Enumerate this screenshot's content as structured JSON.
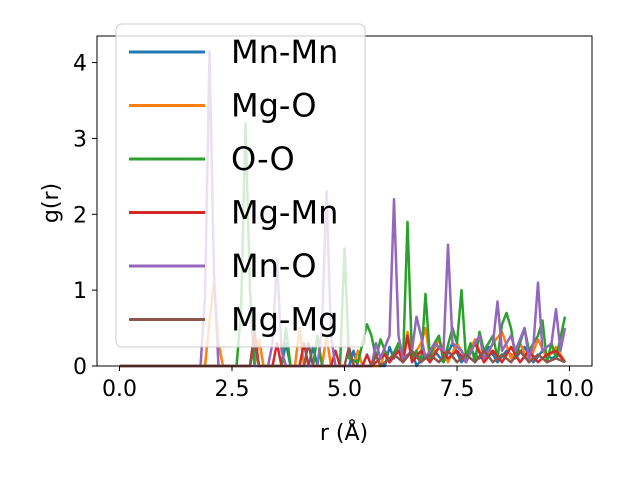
{
  "chart_data": {
    "type": "line",
    "xlabel": "r (Å)",
    "ylabel": "g(r)",
    "xlim": [
      -0.5,
      10.5
    ],
    "ylim": [
      0,
      4.35
    ],
    "xticks": [
      0.0,
      2.5,
      5.0,
      7.5,
      10.0
    ],
    "xtick_labels": [
      "0.0",
      "2.5",
      "5.0",
      "7.5",
      "10.0"
    ],
    "yticks": [
      0,
      1,
      2,
      3,
      4
    ],
    "ytick_labels": [
      "0",
      "1",
      "2",
      "3",
      "4"
    ],
    "grid": false,
    "legend_position": "upper-left",
    "series": [
      {
        "name": "Mn-Mn",
        "color": "#1f77b4",
        "points": [
          [
            0,
            0
          ],
          [
            2.9,
            0
          ],
          [
            3.0,
            0.4
          ],
          [
            3.1,
            0
          ],
          [
            3.6,
            0
          ],
          [
            3.7,
            0.3
          ],
          [
            3.8,
            0
          ],
          [
            4.2,
            0
          ],
          [
            4.3,
            0.25
          ],
          [
            4.4,
            0
          ],
          [
            5.1,
            0
          ],
          [
            5.2,
            0.2
          ],
          [
            5.3,
            0
          ],
          [
            5.9,
            0
          ],
          [
            6.0,
            0.25
          ],
          [
            6.1,
            0.1
          ],
          [
            6.2,
            0.3
          ],
          [
            6.3,
            0.05
          ],
          [
            6.5,
            0.2
          ],
          [
            6.6,
            0
          ],
          [
            6.8,
            0.15
          ],
          [
            6.9,
            0.05
          ],
          [
            7.0,
            0.2
          ],
          [
            7.2,
            0.05
          ],
          [
            7.4,
            0.3
          ],
          [
            7.6,
            0.05
          ],
          [
            7.8,
            0.2
          ],
          [
            8.0,
            0.1
          ],
          [
            8.2,
            0.25
          ],
          [
            8.4,
            0.05
          ],
          [
            8.6,
            0.2
          ],
          [
            8.8,
            0.1
          ],
          [
            9.0,
            0.25
          ],
          [
            9.2,
            0.05
          ],
          [
            9.4,
            0.2
          ],
          [
            9.6,
            0.1
          ],
          [
            9.8,
            0.15
          ],
          [
            9.9,
            0.05
          ]
        ]
      },
      {
        "name": "Mg-O",
        "color": "#ff7f0e",
        "points": [
          [
            0,
            0
          ],
          [
            1.9,
            0
          ],
          [
            2.0,
            0.6
          ],
          [
            2.1,
            1.1
          ],
          [
            2.2,
            0.3
          ],
          [
            2.3,
            0
          ],
          [
            3.0,
            0
          ],
          [
            3.1,
            0.35
          ],
          [
            3.2,
            0
          ],
          [
            3.9,
            0
          ],
          [
            4.0,
            0.5
          ],
          [
            4.1,
            0
          ],
          [
            4.5,
            0
          ],
          [
            4.6,
            0.4
          ],
          [
            4.7,
            0
          ],
          [
            5.2,
            0
          ],
          [
            5.3,
            0.2
          ],
          [
            5.4,
            0
          ],
          [
            5.8,
            0
          ],
          [
            5.9,
            0.2
          ],
          [
            6.0,
            0.05
          ],
          [
            6.2,
            0.3
          ],
          [
            6.3,
            0.1
          ],
          [
            6.4,
            0.45
          ],
          [
            6.5,
            0.1
          ],
          [
            6.7,
            0.3
          ],
          [
            6.8,
            0.5
          ],
          [
            6.9,
            0.1
          ],
          [
            7.1,
            0.35
          ],
          [
            7.3,
            0.05
          ],
          [
            7.5,
            0.3
          ],
          [
            7.7,
            0.1
          ],
          [
            7.9,
            0.35
          ],
          [
            8.1,
            0.05
          ],
          [
            8.3,
            0.3
          ],
          [
            8.5,
            0.45
          ],
          [
            8.7,
            0.1
          ],
          [
            8.9,
            0.3
          ],
          [
            9.1,
            0.05
          ],
          [
            9.3,
            0.35
          ],
          [
            9.5,
            0.1
          ],
          [
            9.7,
            0.25
          ],
          [
            9.9,
            0.05
          ]
        ]
      },
      {
        "name": "O-O",
        "color": "#2ca02c",
        "points": [
          [
            0,
            0
          ],
          [
            2.6,
            0
          ],
          [
            2.7,
            0.7
          ],
          [
            2.8,
            3.2
          ],
          [
            2.9,
            1.0
          ],
          [
            3.0,
            0
          ],
          [
            3.6,
            0
          ],
          [
            3.7,
            0.5
          ],
          [
            3.8,
            0
          ],
          [
            4.3,
            0
          ],
          [
            4.4,
            0.4
          ],
          [
            4.5,
            0
          ],
          [
            4.9,
            0
          ],
          [
            5.0,
            1.55
          ],
          [
            5.1,
            0.1
          ],
          [
            5.3,
            0.05
          ],
          [
            5.5,
            0.55
          ],
          [
            5.6,
            0.4
          ],
          [
            5.7,
            0.1
          ],
          [
            5.8,
            0.35
          ],
          [
            5.9,
            0.2
          ],
          [
            6.0,
            0.05
          ],
          [
            6.2,
            0.3
          ],
          [
            6.3,
            0.05
          ],
          [
            6.4,
            1.9
          ],
          [
            6.5,
            0.1
          ],
          [
            6.6,
            0.2
          ],
          [
            6.7,
            0.05
          ],
          [
            6.8,
            0.95
          ],
          [
            6.9,
            0.1
          ],
          [
            7.0,
            0.3
          ],
          [
            7.1,
            0.4
          ],
          [
            7.2,
            0.05
          ],
          [
            7.4,
            0.5
          ],
          [
            7.5,
            0.3
          ],
          [
            7.6,
            1.0
          ],
          [
            7.7,
            0.1
          ],
          [
            7.8,
            0.3
          ],
          [
            7.9,
            0.05
          ],
          [
            8.0,
            0.45
          ],
          [
            8.1,
            0.2
          ],
          [
            8.3,
            0.4
          ],
          [
            8.4,
            0.1
          ],
          [
            8.5,
            0.55
          ],
          [
            8.6,
            0.7
          ],
          [
            8.7,
            0.5
          ],
          [
            8.8,
            0.1
          ],
          [
            9.0,
            0.5
          ],
          [
            9.1,
            0.2
          ],
          [
            9.3,
            0.4
          ],
          [
            9.4,
            0.6
          ],
          [
            9.5,
            0.05
          ],
          [
            9.6,
            0.3
          ],
          [
            9.7,
            0.1
          ],
          [
            9.9,
            0.65
          ]
        ]
      },
      {
        "name": "Mg-Mn",
        "color": "#d62728",
        "points": [
          [
            0,
            0
          ],
          [
            2.9,
            0
          ],
          [
            3.0,
            0.45
          ],
          [
            3.1,
            0
          ],
          [
            3.4,
            0
          ],
          [
            3.5,
            0.3
          ],
          [
            3.6,
            0
          ],
          [
            4.0,
            0
          ],
          [
            4.1,
            0.3
          ],
          [
            4.2,
            0
          ],
          [
            4.7,
            0
          ],
          [
            4.8,
            0.2
          ],
          [
            4.9,
            0
          ],
          [
            5.4,
            0
          ],
          [
            5.5,
            0.15
          ],
          [
            5.6,
            0
          ],
          [
            5.9,
            0.15
          ],
          [
            6.0,
            0.05
          ],
          [
            6.2,
            0.2
          ],
          [
            6.3,
            0.05
          ],
          [
            6.4,
            0.4
          ],
          [
            6.5,
            0.05
          ],
          [
            6.7,
            0.2
          ],
          [
            6.9,
            0.05
          ],
          [
            7.1,
            0.25
          ],
          [
            7.3,
            0.1
          ],
          [
            7.5,
            0.2
          ],
          [
            7.7,
            0.05
          ],
          [
            7.9,
            0.3
          ],
          [
            8.1,
            0.05
          ],
          [
            8.3,
            0.2
          ],
          [
            8.5,
            0.05
          ],
          [
            8.7,
            0.25
          ],
          [
            8.9,
            0.05
          ],
          [
            9.1,
            0.2
          ],
          [
            9.3,
            0.05
          ],
          [
            9.5,
            0.15
          ],
          [
            9.7,
            0.2
          ],
          [
            9.9,
            0.05
          ]
        ]
      },
      {
        "name": "Mn-O",
        "color": "#9467bd",
        "points": [
          [
            0,
            0
          ],
          [
            1.8,
            0
          ],
          [
            1.9,
            0.9
          ],
          [
            2.0,
            4.15
          ],
          [
            2.1,
            1.2
          ],
          [
            2.2,
            0
          ],
          [
            3.3,
            0
          ],
          [
            3.4,
            0.3
          ],
          [
            3.5,
            1.4
          ],
          [
            3.6,
            0.2
          ],
          [
            3.7,
            0
          ],
          [
            4.4,
            0
          ],
          [
            4.5,
            0.5
          ],
          [
            4.6,
            2.3
          ],
          [
            4.7,
            0.4
          ],
          [
            4.8,
            0
          ],
          [
            5.6,
            0
          ],
          [
            5.7,
            0.3
          ],
          [
            5.8,
            0.1
          ],
          [
            6.0,
            0.4
          ],
          [
            6.1,
            2.2
          ],
          [
            6.2,
            0.4
          ],
          [
            6.3,
            0.1
          ],
          [
            6.5,
            0.2
          ],
          [
            6.6,
            0.65
          ],
          [
            6.7,
            0.4
          ],
          [
            6.8,
            0.1
          ],
          [
            7.0,
            0.3
          ],
          [
            7.2,
            0.2
          ],
          [
            7.3,
            1.6
          ],
          [
            7.4,
            0.3
          ],
          [
            7.6,
            0.2
          ],
          [
            7.7,
            0.05
          ],
          [
            7.9,
            0.3
          ],
          [
            8.0,
            0.4
          ],
          [
            8.1,
            0.1
          ],
          [
            8.3,
            0.3
          ],
          [
            8.4,
            0.85
          ],
          [
            8.5,
            0.2
          ],
          [
            8.7,
            0.4
          ],
          [
            8.8,
            0.2
          ],
          [
            9.0,
            0.5
          ],
          [
            9.1,
            0.1
          ],
          [
            9.2,
            0.3
          ],
          [
            9.3,
            1.1
          ],
          [
            9.4,
            0.2
          ],
          [
            9.6,
            0.3
          ],
          [
            9.7,
            0.75
          ],
          [
            9.8,
            0.2
          ],
          [
            9.9,
            0.5
          ]
        ]
      },
      {
        "name": "Mg-Mg",
        "color": "#8c564b",
        "points": [
          [
            0,
            0
          ],
          [
            2.9,
            0
          ],
          [
            3.0,
            0.3
          ],
          [
            3.1,
            0
          ],
          [
            4.1,
            0
          ],
          [
            4.2,
            0.3
          ],
          [
            4.3,
            0
          ],
          [
            5.0,
            0
          ],
          [
            5.1,
            0.25
          ],
          [
            5.2,
            0
          ],
          [
            5.6,
            0
          ],
          [
            5.7,
            0.15
          ],
          [
            5.8,
            0
          ],
          [
            6.1,
            0.15
          ],
          [
            6.3,
            0.05
          ],
          [
            6.5,
            0.2
          ],
          [
            6.7,
            0.05
          ],
          [
            6.9,
            0.15
          ],
          [
            7.1,
            0.05
          ],
          [
            7.3,
            0.2
          ],
          [
            7.5,
            0.05
          ],
          [
            7.7,
            0.15
          ],
          [
            7.9,
            0.05
          ],
          [
            8.1,
            0.2
          ],
          [
            8.3,
            0.05
          ],
          [
            8.5,
            0.15
          ],
          [
            8.7,
            0.05
          ],
          [
            8.9,
            0.2
          ],
          [
            9.1,
            0.05
          ],
          [
            9.3,
            0.15
          ],
          [
            9.5,
            0.05
          ],
          [
            9.7,
            0.1
          ],
          [
            9.9,
            0.05
          ]
        ]
      }
    ]
  }
}
